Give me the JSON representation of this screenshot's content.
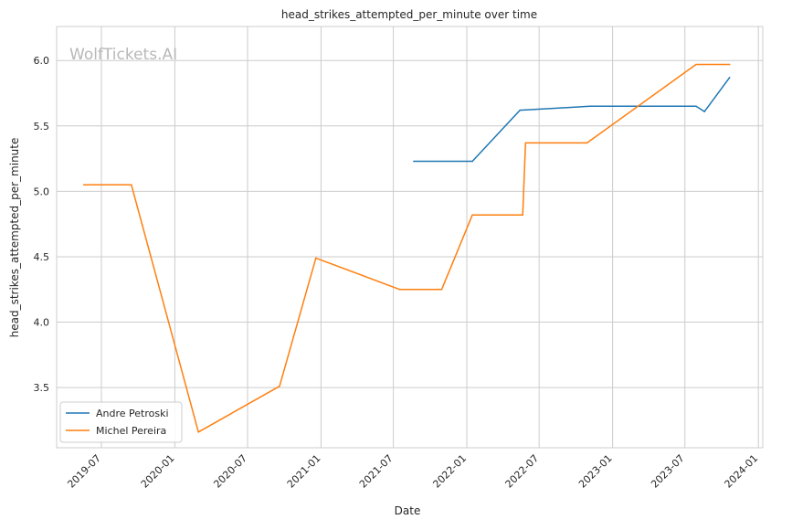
{
  "chart_data": {
    "type": "line",
    "title": "head_strikes_attempted_per_minute over time",
    "xlabel": "Date",
    "ylabel": "head_strikes_attempted_per_minute",
    "watermark": "WolfTickets.AI",
    "x_ticks": [
      "2019-07",
      "2020-01",
      "2020-07",
      "2021-01",
      "2021-07",
      "2022-01",
      "2022-07",
      "2023-01",
      "2023-07",
      "2024-01"
    ],
    "y_ticks": [
      "3.5",
      "4.0",
      "4.5",
      "5.0",
      "5.5",
      "6.0"
    ],
    "xlim": [
      "2019-03-11",
      "2024-01-12"
    ],
    "ylim": [
      3.04,
      6.26
    ],
    "grid": true,
    "legend_position": "lower-left",
    "series": [
      {
        "name": "Andre Petroski",
        "color": "#1f77b4",
        "points": [
          [
            "2021-08-21",
            5.23
          ],
          [
            "2022-01-15",
            5.23
          ],
          [
            "2022-05-14",
            5.62
          ],
          [
            "2022-11-05",
            5.65
          ],
          [
            "2023-07-29",
            5.65
          ],
          [
            "2023-08-19",
            5.61
          ],
          [
            "2023-10-21",
            5.87
          ]
        ]
      },
      {
        "name": "Michel Pereira",
        "color": "#ff7f0e",
        "points": [
          [
            "2019-05-18",
            5.05
          ],
          [
            "2019-09-14",
            5.05
          ],
          [
            "2020-02-29",
            3.16
          ],
          [
            "2020-09-19",
            3.51
          ],
          [
            "2020-12-19",
            4.49
          ],
          [
            "2021-07-17",
            4.25
          ],
          [
            "2021-10-30",
            4.25
          ],
          [
            "2022-01-15",
            4.82
          ],
          [
            "2022-05-21",
            4.82
          ],
          [
            "2022-05-28",
            5.37
          ],
          [
            "2022-10-29",
            5.37
          ],
          [
            "2023-07-29",
            5.97
          ],
          [
            "2023-10-21",
            5.97
          ]
        ]
      }
    ]
  }
}
